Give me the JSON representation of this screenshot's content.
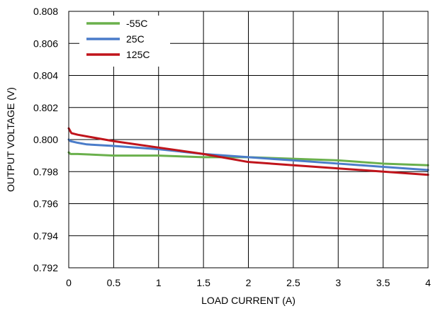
{
  "chart_data": {
    "type": "line",
    "title": "",
    "xlabel": "LOAD CURRENT (A)",
    "ylabel": "OUTPUT VOLTAGE (V)",
    "xlim": [
      0,
      4
    ],
    "ylim": [
      0.792,
      0.808
    ],
    "x_ticks": [
      0,
      0.5,
      1,
      1.5,
      2,
      2.5,
      3,
      3.5,
      4
    ],
    "x_tick_labels": [
      "0",
      "0.5",
      "1",
      "1.5",
      "2",
      "2.5",
      "3",
      "3.5",
      "4"
    ],
    "y_ticks": [
      0.792,
      0.794,
      0.796,
      0.798,
      0.8,
      0.802,
      0.804,
      0.806,
      0.808
    ],
    "y_tick_labels": [
      "0.792",
      "0.794",
      "0.796",
      "0.798",
      "0.800",
      "0.802",
      "0.804",
      "0.806",
      "0.808"
    ],
    "grid": true,
    "legend_position": "top-left",
    "series": [
      {
        "name": "-55C",
        "color": "#6ab04c",
        "x": [
          0,
          0.02,
          0.1,
          0.5,
          1.0,
          1.5,
          2.0,
          2.5,
          3.0,
          3.5,
          4.0
        ],
        "y": [
          0.7992,
          0.7991,
          0.7991,
          0.799,
          0.799,
          0.7989,
          0.7989,
          0.7988,
          0.7987,
          0.7985,
          0.7984
        ]
      },
      {
        "name": "25C",
        "color": "#4a7cc9",
        "x": [
          0,
          0.02,
          0.1,
          0.2,
          0.5,
          1.0,
          1.5,
          2.0,
          2.5,
          3.0,
          3.5,
          4.0
        ],
        "y": [
          0.8,
          0.7999,
          0.7998,
          0.7997,
          0.7996,
          0.7994,
          0.7991,
          0.7989,
          0.7987,
          0.7985,
          0.7983,
          0.7981
        ]
      },
      {
        "name": "125C",
        "color": "#c0141b",
        "x": [
          0,
          0.01,
          0.03,
          0.1,
          0.2,
          0.5,
          1.0,
          1.5,
          2.0,
          2.5,
          3.0,
          3.5,
          4.0
        ],
        "y": [
          0.8007,
          0.8006,
          0.8004,
          0.8003,
          0.8002,
          0.7999,
          0.7995,
          0.7991,
          0.7986,
          0.7984,
          0.7982,
          0.798,
          0.7978
        ]
      }
    ]
  }
}
